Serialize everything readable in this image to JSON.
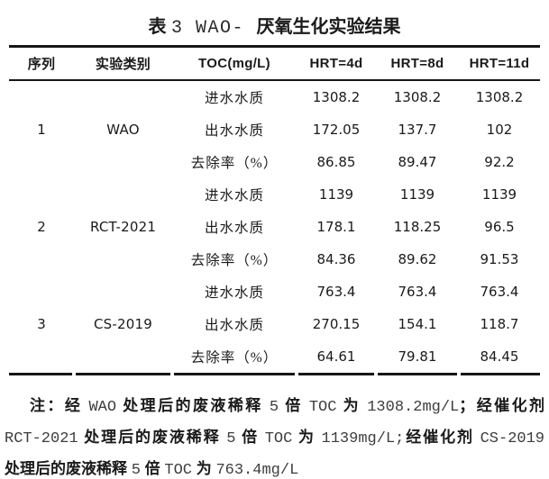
{
  "title": {
    "prefix": "表 ",
    "latin": "3 WAO- ",
    "suffix": "厌氧生化实验结果"
  },
  "table": {
    "headers": [
      "序列",
      "实验类别",
      "TOC(mg/L)",
      "HRT=4d",
      "HRT=8d",
      "HRT=11d"
    ],
    "groups": [
      {
        "seq": "1",
        "category": "WAO",
        "rows": [
          {
            "label": "进水水质",
            "values": [
              "1308.2",
              "1308.2",
              "1308.2"
            ]
          },
          {
            "label": "出水水质",
            "values": [
              "172.05",
              "137.7",
              "102"
            ]
          },
          {
            "label": "去除率（%）",
            "values": [
              "86.85",
              "89.47",
              "92.2"
            ]
          }
        ]
      },
      {
        "seq": "2",
        "category": "RCT-2021",
        "rows": [
          {
            "label": "进水水质",
            "values": [
              "1139",
              "1139",
              "1139"
            ]
          },
          {
            "label": "出水水质",
            "values": [
              "178.1",
              "118.25",
              "96.5"
            ]
          },
          {
            "label": "去除率（%）",
            "values": [
              "84.36",
              "89.62",
              "91.53"
            ]
          }
        ]
      },
      {
        "seq": "3",
        "category": "CS-2019",
        "rows": [
          {
            "label": "进水水质",
            "values": [
              "763.4",
              "763.4",
              "763.4"
            ]
          },
          {
            "label": "出水水质",
            "values": [
              "270.15",
              "154.1",
              "118.7"
            ]
          },
          {
            "label": "去除率（%）",
            "values": [
              "64.61",
              "79.81",
              "84.45"
            ]
          }
        ]
      }
    ]
  },
  "footnote": {
    "line1": {
      "s0": "注：经 ",
      "s1": "WAO",
      "s2": " 处理后的废液稀释 ",
      "s3": "5",
      "s4": " 倍 ",
      "s5": "TOC",
      "s6": " 为 ",
      "s7": "1308.2mg/L",
      "s8": "；经催化剂"
    },
    "line2": {
      "s0": "RCT-2021",
      "s1": " 处理后的废液稀释 ",
      "s2": "5",
      "s3": " 倍 ",
      "s4": "TOC",
      "s5": " 为 ",
      "s6": "1139mg/L;",
      "s7": "经催化剂 ",
      "s8": "CS-2019"
    },
    "line3": {
      "s0": "处理后的废液稀释 ",
      "s1": "5",
      "s2": " 倍 ",
      "s3": "TOC",
      "s4": " 为 ",
      "s5": "763.4mg/L"
    }
  }
}
